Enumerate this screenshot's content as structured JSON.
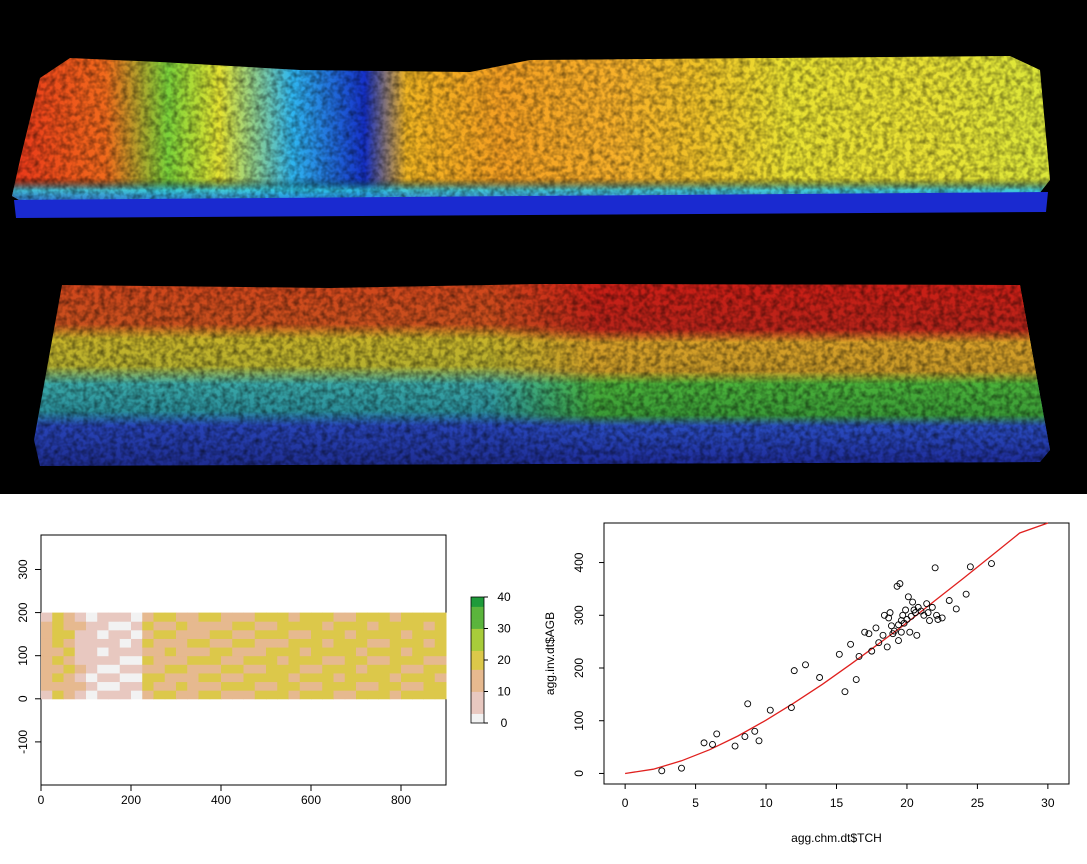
{
  "colors": {
    "background": "#000000",
    "raster_scale": [
      "#f2f2f2",
      "#e8c8c0",
      "#e6b98f",
      "#dcc84a",
      "#a8cc3a",
      "#5bb53c",
      "#1e9b3a"
    ],
    "fit_line": "#e0201e",
    "points": "#000000"
  },
  "chart_data": [
    {
      "type": "heatmap",
      "title": "",
      "xlabel": "",
      "ylabel": "",
      "xlim": [
        0,
        900
      ],
      "ylim": [
        -200,
        380
      ],
      "x_ticks": [
        "0",
        "200",
        "400",
        "600",
        "800"
      ],
      "x_tick_values": [
        0,
        200,
        400,
        600,
        800
      ],
      "y_ticks": [
        "-100",
        "0",
        "100",
        "200",
        "300"
      ],
      "y_tick_values": [
        -100,
        0,
        100,
        200,
        300
      ],
      "raster_extent": {
        "x": [
          0,
          900
        ],
        "y": [
          0,
          200
        ]
      },
      "legend": {
        "position": "right",
        "ticks": [
          "0",
          "10",
          "20",
          "30",
          "40"
        ],
        "tick_values": [
          0,
          10,
          20,
          30,
          40
        ],
        "range": [
          0,
          40
        ]
      },
      "raster_columns": [
        13,
        18,
        15,
        9,
        6,
        4,
        5,
        4,
        4,
        17,
        15,
        16,
        15,
        14,
        16,
        17,
        16,
        16,
        17,
        16,
        18,
        19,
        18,
        17,
        19,
        18,
        18,
        19,
        18,
        17,
        19,
        19,
        17,
        19,
        18,
        19
      ]
    },
    {
      "type": "scatter",
      "title": "",
      "xlabel": "agg.chm.dt$TCH",
      "ylabel": "agg.inv.dt$AGB",
      "xlim": [
        -1.5,
        31.5
      ],
      "ylim": [
        -20,
        475
      ],
      "x_ticks": [
        "0",
        "5",
        "10",
        "15",
        "20",
        "25",
        "30"
      ],
      "x_tick_values": [
        0,
        5,
        10,
        15,
        20,
        25,
        30
      ],
      "y_ticks": [
        "0",
        "100",
        "200",
        "300",
        "400"
      ],
      "y_tick_values": [
        0,
        100,
        200,
        300,
        400
      ],
      "x": [
        2.6,
        4.0,
        5.6,
        6.2,
        6.5,
        7.8,
        8.5,
        8.7,
        9.2,
        9.5,
        10.3,
        11.8,
        12.0,
        12.8,
        13.8,
        15.2,
        15.6,
        16.0,
        16.4,
        16.6,
        17.0,
        17.3,
        17.5,
        17.8,
        18.0,
        18.3,
        18.4,
        18.6,
        18.8,
        18.9,
        19.0,
        19.1,
        19.3,
        19.4,
        19.5,
        19.6,
        19.7,
        19.8,
        19.9,
        20.0,
        20.1,
        20.2,
        20.3,
        20.4,
        20.6,
        20.7,
        20.8,
        21.0,
        21.2,
        21.4,
        21.6,
        21.8,
        22.0,
        22.2,
        22.5,
        23.0,
        23.5,
        24.2,
        24.5,
        26.0,
        19.4,
        19.6,
        21.5,
        22.1,
        18.7,
        20.5
      ],
      "y": [
        5,
        10,
        58,
        55,
        75,
        52,
        70,
        132,
        80,
        62,
        120,
        125,
        195,
        206,
        182,
        226,
        155,
        245,
        178,
        222,
        268,
        265,
        232,
        276,
        248,
        262,
        300,
        240,
        305,
        280,
        265,
        270,
        355,
        252,
        360,
        290,
        300,
        285,
        310,
        292,
        335,
        268,
        298,
        325,
        305,
        262,
        315,
        308,
        300,
        322,
        290,
        315,
        390,
        292,
        295,
        328,
        312,
        340,
        392,
        398,
        282,
        268,
        305,
        300,
        295,
        310
      ],
      "fit_curve": {
        "x": [
          0,
          2,
          4,
          6,
          8,
          10,
          12,
          14,
          16,
          18,
          20,
          22,
          24,
          26,
          28,
          30
        ],
        "y": [
          0,
          8,
          24,
          45,
          71,
          101,
          134,
          169,
          207,
          246,
          286,
          328,
          370,
          413,
          456,
          500
        ]
      }
    }
  ]
}
